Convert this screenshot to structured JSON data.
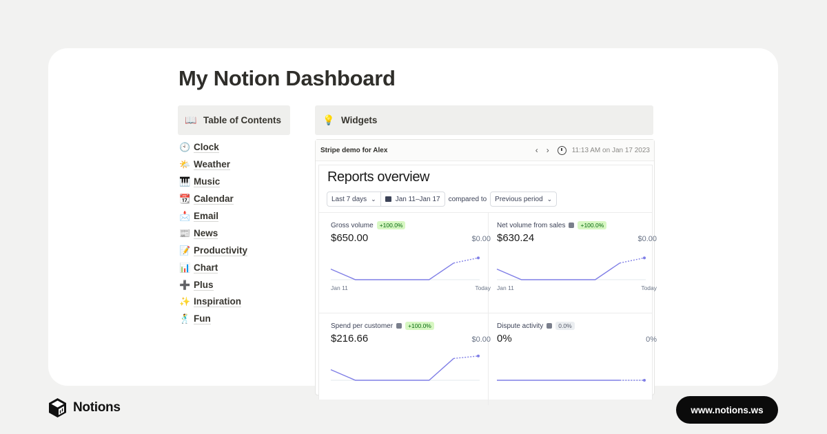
{
  "page": {
    "title": "My Notion Dashboard"
  },
  "toc": {
    "icon": "open-book-icon",
    "icon_glyph": "📖",
    "label": "Table of Contents",
    "items": [
      {
        "icon": "clock-icon",
        "glyph": "🕙",
        "label": "Clock"
      },
      {
        "icon": "sun-cloud-icon",
        "glyph": "🌤️",
        "label": "Weather"
      },
      {
        "icon": "piano-icon",
        "glyph": "🎹",
        "label": "Music"
      },
      {
        "icon": "calendar-icon",
        "glyph": "📆",
        "label": "Calendar"
      },
      {
        "icon": "mailbox-icon",
        "glyph": "📩",
        "label": "Email"
      },
      {
        "icon": "newspaper-icon",
        "glyph": "📰",
        "label": "News"
      },
      {
        "icon": "memo-icon",
        "glyph": "📝",
        "label": "Productivity"
      },
      {
        "icon": "bar-chart-icon",
        "glyph": "📊",
        "label": "Chart"
      },
      {
        "icon": "plus-icon",
        "glyph": "➕",
        "label": "Plus"
      },
      {
        "icon": "sparkles-icon",
        "glyph": "✨",
        "label": "Inspiration"
      },
      {
        "icon": "dancer-icon",
        "glyph": "🕺",
        "label": "Fun"
      }
    ]
  },
  "widgets": {
    "icon": "light-bulb-icon",
    "icon_glyph": "💡",
    "label": "Widgets"
  },
  "embed": {
    "name": "Stripe demo for Alex",
    "prev_glyph": "‹",
    "next_glyph": "›",
    "time": "11:13 AM on Jan 17 2023"
  },
  "report": {
    "title": "Reports overview",
    "range_label": "Last 7 days",
    "dates_label": "Jan 11–Jan 17",
    "compared_label": "compared to",
    "period_label": "Previous period",
    "chevron": "⌄",
    "colors": {
      "line": "#7f7ee6",
      "baseline": "#e3e8ee",
      "badge_green": "#d7f7c2"
    },
    "metrics": [
      {
        "label": "Gross volume",
        "info": false,
        "badge": "+100.0%",
        "badge_type": "positive",
        "value": "$650.00",
        "previous": "$0.00",
        "x_start": "Jan 11",
        "x_end": "Today",
        "series": [
          0.35,
          0,
          0,
          0,
          0,
          0.55,
          0.72
        ]
      },
      {
        "label": "Net volume from sales",
        "info": true,
        "badge": "+100.0%",
        "badge_type": "positive",
        "value": "$630.24",
        "previous": "$0.00",
        "x_start": "Jan 11",
        "x_end": "Today",
        "series": [
          0.35,
          0,
          0,
          0,
          0,
          0.55,
          0.72
        ]
      },
      {
        "label": "Spend per customer",
        "info": true,
        "badge": "+100.0%",
        "badge_type": "positive",
        "value": "$216.66",
        "previous": "$0.00",
        "x_start": "",
        "x_end": "",
        "series": [
          0.35,
          0,
          0,
          0,
          0,
          0.72,
          0.8
        ]
      },
      {
        "label": "Dispute activity",
        "info": true,
        "badge": "0.0%",
        "badge_type": "neutral",
        "value": "0%",
        "previous": "0%",
        "x_start": "",
        "x_end": "",
        "series": [
          0,
          0,
          0,
          0,
          0,
          0,
          0
        ]
      }
    ]
  },
  "footer": {
    "brand": "Notions",
    "brand_icon": "notions-cube-icon",
    "url": "www.notions.ws"
  }
}
